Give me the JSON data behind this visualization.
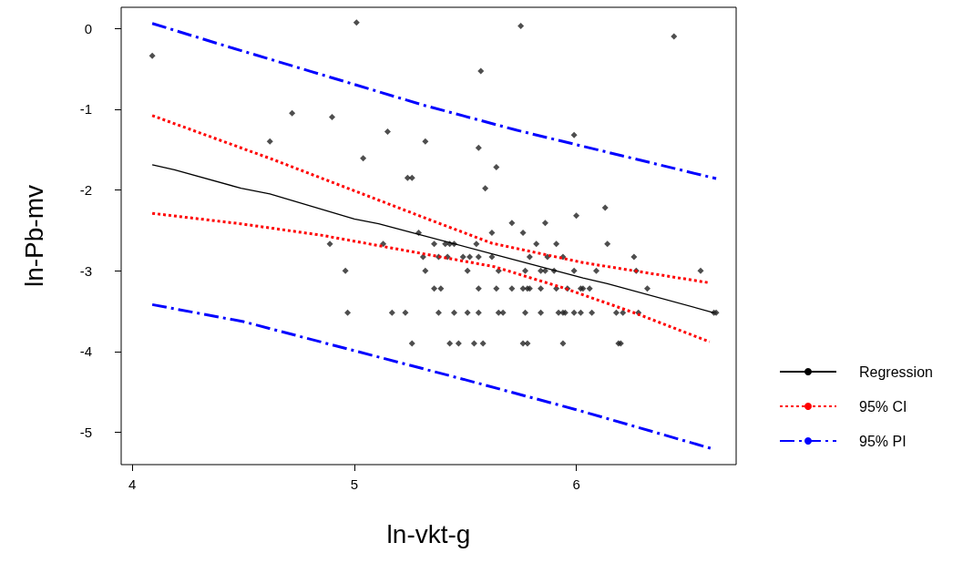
{
  "chart_data": {
    "type": "scatter",
    "xlabel": "ln-vkt-g",
    "ylabel": "ln-Pb-mv",
    "xlim": [
      3.95,
      6.72
    ],
    "ylim": [
      -5.4,
      0.26
    ],
    "xticks": [
      4,
      5,
      6
    ],
    "yticks": [
      -5,
      -4,
      -3,
      -2,
      -1,
      0
    ],
    "grid": false,
    "legend": "right",
    "series": [
      {
        "marker": "diamond",
        "color": "#222222",
        "x": [
          4.09,
          5.01,
          4.72,
          4.9,
          4.62,
          5.15,
          5.32,
          5.04,
          5.24,
          5.26,
          5.29,
          5.75,
          6.44,
          5.57,
          5.56,
          5.64,
          5.59,
          5.99,
          6.13,
          6.0,
          5.86,
          5.71,
          5.62,
          5.76,
          4.89,
          5.13,
          5.36,
          5.41,
          5.43,
          5.45,
          5.55,
          5.31,
          5.38,
          5.42,
          5.49,
          5.52,
          5.56,
          5.62,
          4.96,
          5.32,
          5.51,
          5.65,
          5.36,
          5.39,
          5.56,
          5.64,
          4.97,
          5.17,
          5.23,
          5.38,
          5.45,
          5.51,
          5.56,
          5.65,
          5.26,
          5.43,
          5.47,
          5.54,
          5.58,
          5.82,
          5.91,
          6.14,
          5.79,
          5.87,
          5.94,
          6.26,
          5.77,
          5.84,
          5.86,
          5.9,
          5.99,
          6.09,
          6.27,
          6.56,
          5.71,
          5.76,
          5.78,
          5.79,
          5.84,
          5.91,
          5.96,
          6.02,
          6.03,
          6.06,
          6.32,
          5.67,
          5.77,
          5.84,
          5.92,
          5.94,
          5.95,
          5.99,
          6.02,
          6.07,
          6.18,
          6.21,
          6.28,
          6.62,
          6.63,
          5.76,
          5.78,
          5.94,
          6.19,
          6.2
        ],
        "values": [
          -0.34,
          0.07,
          -1.05,
          -1.1,
          -1.4,
          -1.28,
          -1.4,
          -1.61,
          -1.85,
          -1.85,
          -2.53,
          0.03,
          -0.1,
          -0.53,
          -1.48,
          -1.72,
          -1.98,
          -1.32,
          -2.22,
          -2.32,
          -2.41,
          -2.41,
          -2.53,
          -2.53,
          -2.67,
          -2.67,
          -2.67,
          -2.67,
          -2.67,
          -2.67,
          -2.67,
          -2.83,
          -2.83,
          -2.83,
          -2.83,
          -2.83,
          -2.83,
          -2.83,
          -3.0,
          -3.0,
          -3.0,
          -3.0,
          -3.22,
          -3.22,
          -3.22,
          -3.22,
          -3.52,
          -3.52,
          -3.52,
          -3.52,
          -3.52,
          -3.52,
          -3.52,
          -3.52,
          -3.9,
          -3.9,
          -3.9,
          -3.9,
          -3.9,
          -2.67,
          -2.67,
          -2.67,
          -2.83,
          -2.83,
          -2.83,
          -2.83,
          -3.0,
          -3.0,
          -3.0,
          -3.0,
          -3.0,
          -3.0,
          -3.0,
          -3.0,
          -3.22,
          -3.22,
          -3.22,
          -3.22,
          -3.22,
          -3.22,
          -3.22,
          -3.22,
          -3.22,
          -3.22,
          -3.22,
          -3.52,
          -3.52,
          -3.52,
          -3.52,
          -3.52,
          -3.52,
          -3.52,
          -3.52,
          -3.52,
          -3.52,
          -3.52,
          -3.52,
          -3.52,
          -3.52,
          -3.9,
          -3.9,
          -3.9,
          -3.9,
          -3.9
        ]
      },
      {
        "type": "line",
        "marker": "none",
        "name": "Regression",
        "color": "#000000",
        "line_style": "solid",
        "x": [
          4.09,
          4.19,
          4.49,
          4.62,
          5.0,
          5.11,
          5.62,
          6.03,
          6.14,
          6.62
        ],
        "values": [
          -1.69,
          -1.75,
          -1.98,
          -2.05,
          -2.36,
          -2.42,
          -2.79,
          -3.09,
          -3.16,
          -3.52
        ]
      },
      {
        "type": "line",
        "marker": "none",
        "name": "95% CI",
        "color": "#ff0000",
        "line_style": "dotted",
        "x": [
          4.09,
          4.63,
          5.34,
          5.62,
          6.03,
          6.6
        ],
        "values": [
          -1.08,
          -1.62,
          -2.37,
          -2.66,
          -2.9,
          -3.15
        ]
      },
      {
        "type": "line",
        "marker": "none",
        "color": "#ff0000",
        "line_style": "dotted",
        "x": [
          4.09,
          4.49,
          4.85,
          5.11,
          5.63,
          5.95,
          6.28,
          6.6
        ],
        "values": [
          -2.29,
          -2.42,
          -2.56,
          -2.69,
          -2.95,
          -3.22,
          -3.54,
          -3.88
        ]
      },
      {
        "type": "line",
        "marker": "none",
        "name": "95% PI",
        "color": "#0000ff",
        "line_style": "dashed",
        "x": [
          4.09,
          4.41,
          4.8,
          5.31,
          5.73,
          6.63
        ],
        "values": [
          0.06,
          -0.21,
          -0.53,
          -0.95,
          -1.26,
          -1.86
        ]
      },
      {
        "type": "line",
        "marker": "none",
        "color": "#0000ff",
        "line_style": "dashed",
        "x": [
          4.09,
          4.5,
          5.0,
          5.5,
          6.0,
          6.62
        ],
        "values": [
          -3.42,
          -3.63,
          -3.99,
          -4.35,
          -4.72,
          -5.21
        ]
      }
    ]
  }
}
